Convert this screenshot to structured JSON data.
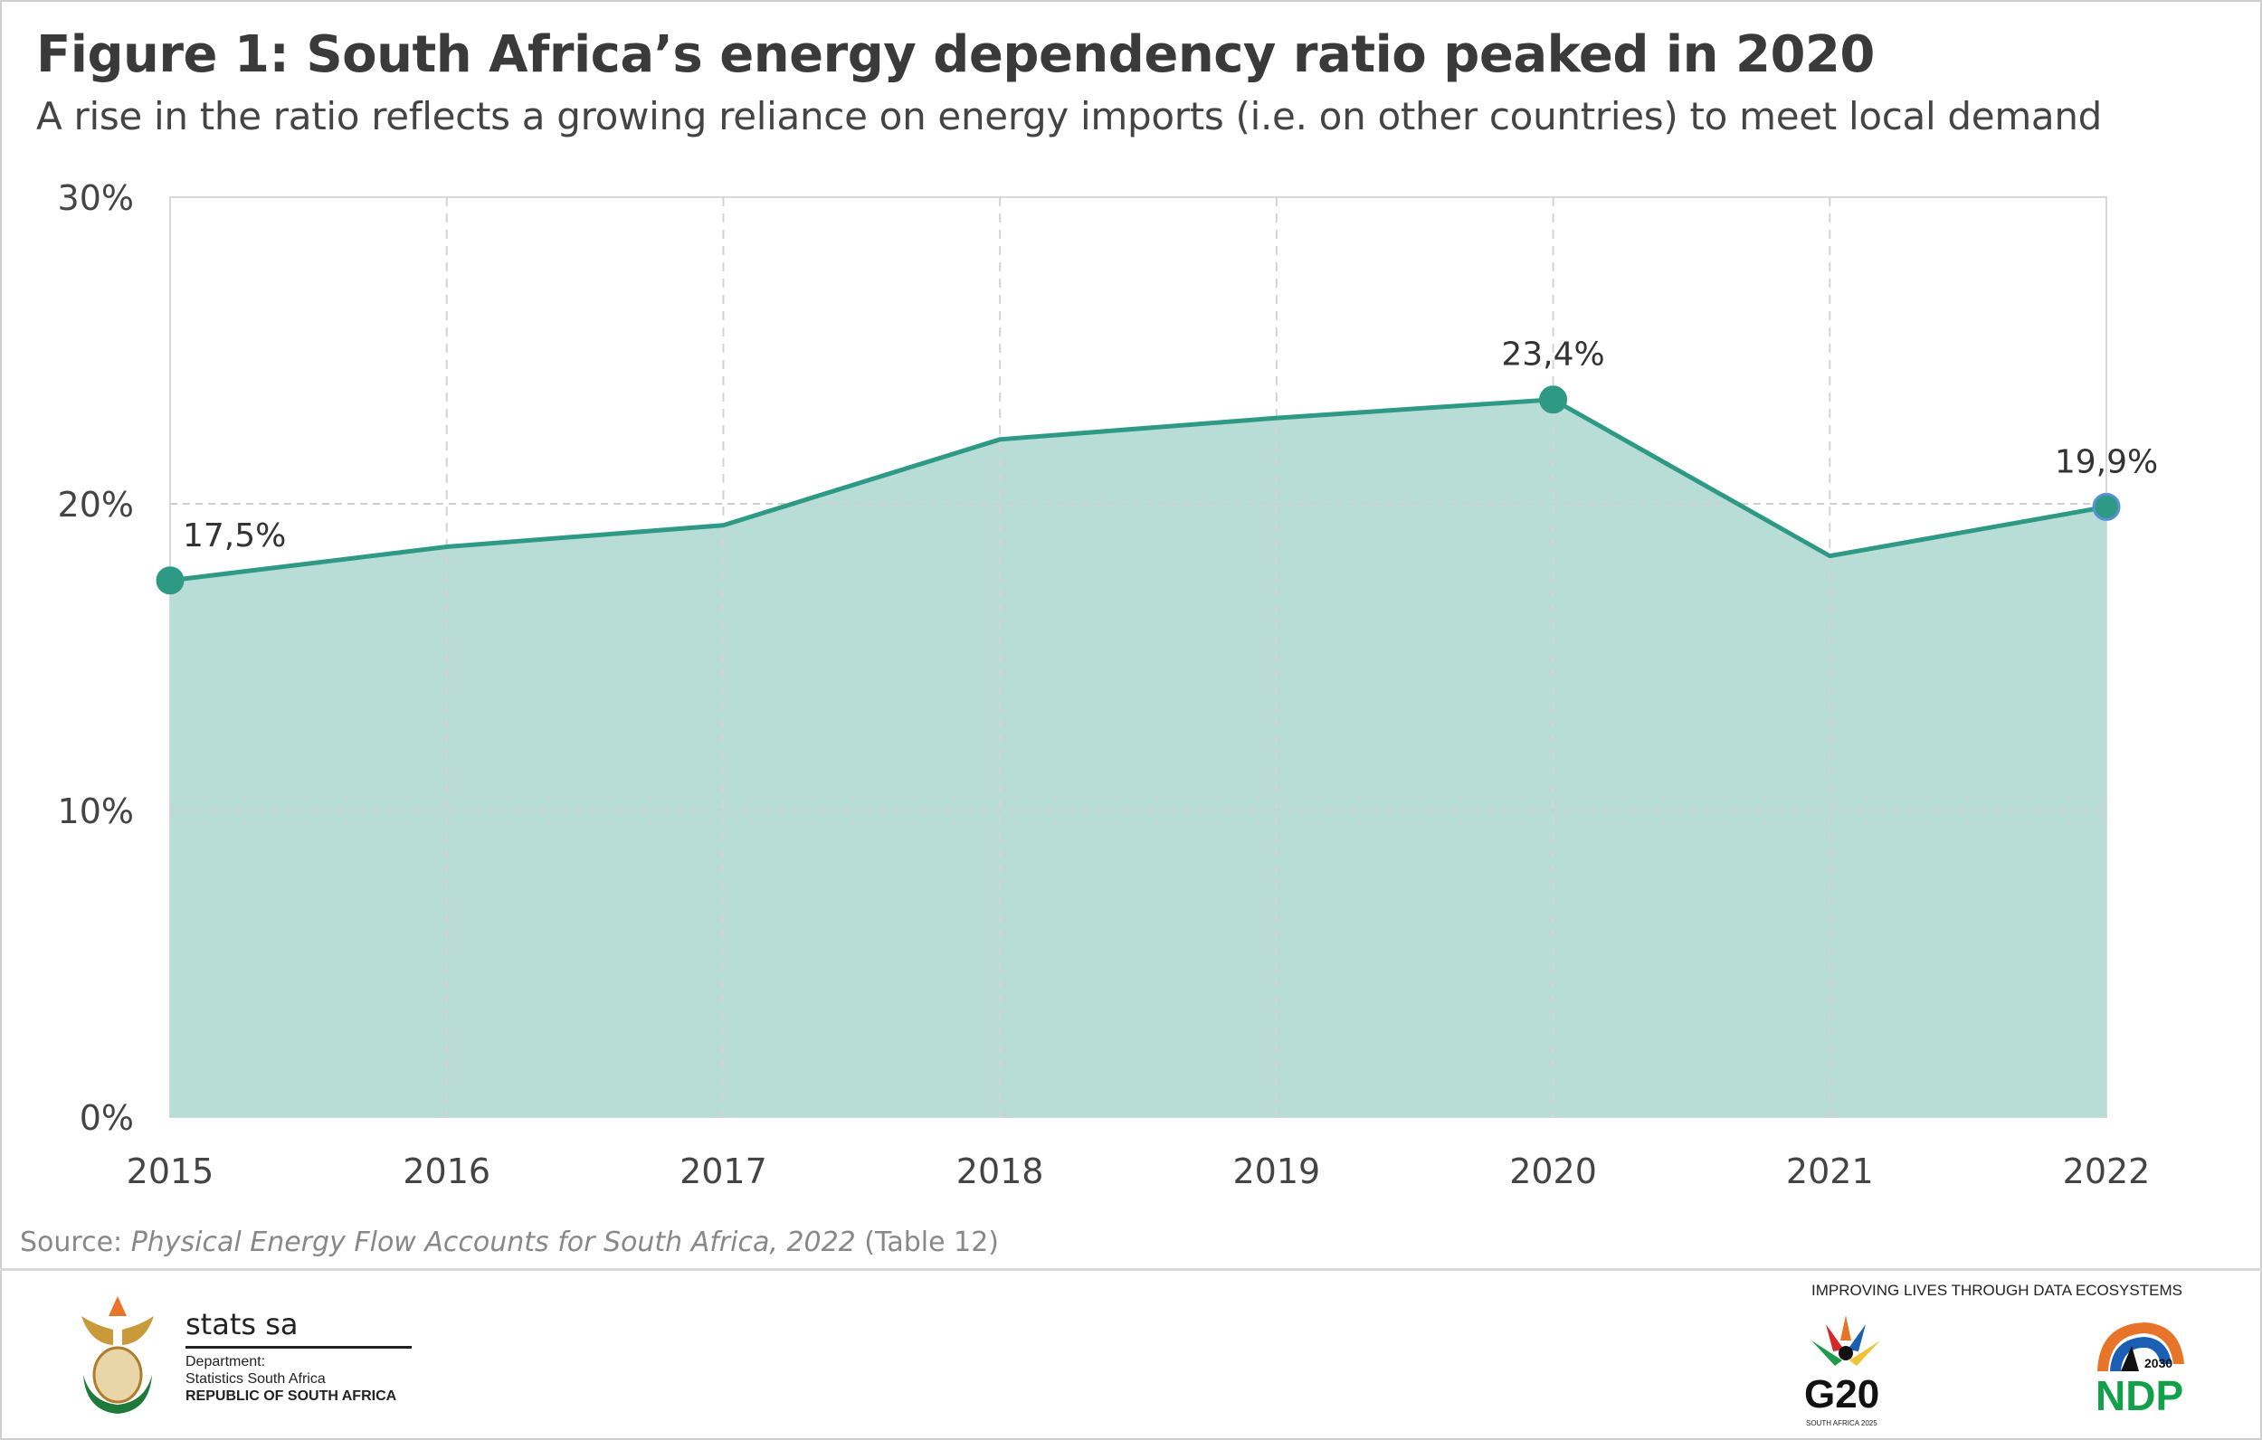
{
  "header": {
    "title": "Figure 1: South Africa’s energy dependency ratio peaked in 2020",
    "subtitle": "A rise in the ratio reflects a growing reliance on energy imports (i.e. on other countries) to meet local demand"
  },
  "chart_data": {
    "type": "area",
    "title": "Figure 1: South Africa’s energy dependency ratio peaked in 2020",
    "xlabel": "",
    "ylabel": "",
    "categories": [
      "2015",
      "2016",
      "2017",
      "2018",
      "2019",
      "2020",
      "2021",
      "2022"
    ],
    "values": [
      17.5,
      18.6,
      19.3,
      22.1,
      22.8,
      23.4,
      18.3,
      19.9
    ],
    "data_labels": [
      {
        "index": 0,
        "text": "17,5%"
      },
      {
        "index": 5,
        "text": "23,4%"
      },
      {
        "index": 7,
        "text": "19,9%"
      }
    ],
    "marker_indices": [
      0,
      5,
      7
    ],
    "ylim": [
      0,
      30
    ],
    "yticks": [
      0,
      10,
      20,
      30
    ],
    "ytick_labels": [
      "0%",
      "10%",
      "20%",
      "30%"
    ],
    "grid": true,
    "colors": {
      "line": "#2e9a85",
      "fill": "#b7ddd6",
      "last_marker_outline": "#5b8fd6"
    }
  },
  "source": {
    "prefix": "Source: ",
    "title": "Physical Energy Flow Accounts for South Africa, 2022",
    "suffix": " (Table 12)"
  },
  "footer": {
    "brand": "stats sa",
    "dept_label": "Department:",
    "dept_name": "Statistics South Africa",
    "republic": "REPUBLIC OF SOUTH AFRICA",
    "tagline": "IMPROVING LIVES THROUGH DATA ECOSYSTEMS",
    "g20": "G20",
    "g20_sub": "SOUTH AFRICA 2025",
    "ndp": "NDP",
    "ndp_year": "2030"
  }
}
